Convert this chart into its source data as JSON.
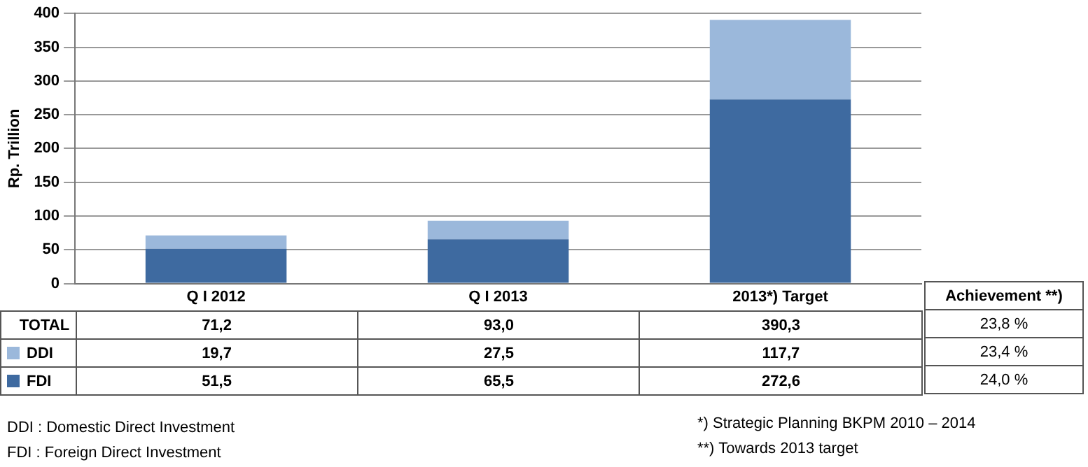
{
  "chart_data": {
    "type": "bar",
    "stacked": true,
    "ylabel": "Rp. Trillion",
    "categories": [
      "Q I 2012",
      "Q I 2013",
      "2013*) Target"
    ],
    "series": [
      {
        "name": "FDI",
        "color": "#3e6aa0",
        "values": [
          51.5,
          65.5,
          272.6
        ],
        "value_labels": [
          "51,5",
          "65,5",
          "272,6"
        ]
      },
      {
        "name": "DDI",
        "color": "#9bb8db",
        "values": [
          19.7,
          27.5,
          117.7
        ],
        "value_labels": [
          "19,7",
          "27,5",
          "117,7"
        ]
      }
    ],
    "totals": [
      "71,2",
      "93,0",
      "390,3"
    ],
    "ylim": [
      0,
      400
    ],
    "yticks": [
      0,
      50,
      100,
      150,
      200,
      250,
      300,
      350,
      400
    ],
    "grid": "y",
    "legend": "bottom",
    "annotations": [
      "TOTAL",
      "Achievement **)",
      "23,8 %",
      "23,4 %",
      "24,0 %",
      "DDI : Domestic Direct Investment",
      "FDI : Foreign Direct Investment",
      "*) Strategic Planning BKPM 2010 – 2014",
      "**)  Towards 2013 target"
    ]
  }
}
